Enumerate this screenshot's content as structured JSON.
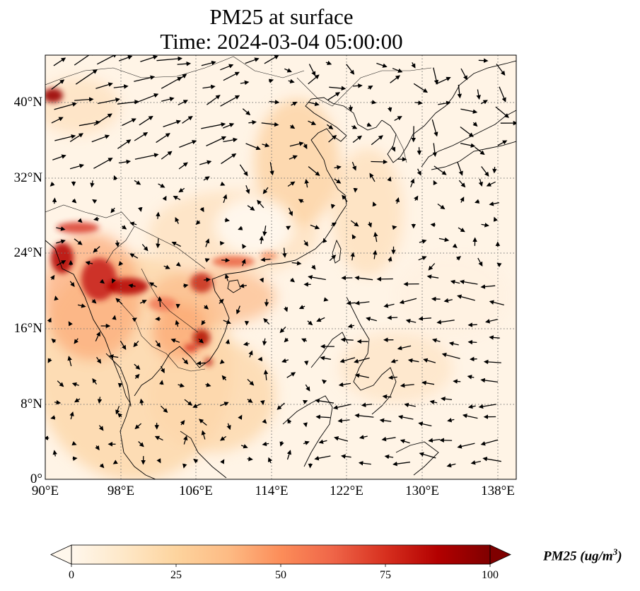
{
  "figure": {
    "title_line1": "PM25 at surface",
    "title_line2": "Time: 2024-03-04 05:00:00"
  },
  "map": {
    "lon_range": [
      90,
      140
    ],
    "lat_range": [
      0,
      45
    ],
    "lon_ticks": [
      "90°E",
      "98°E",
      "106°E",
      "114°E",
      "122°E",
      "130°E",
      "138°E"
    ],
    "lat_ticks": [
      "0°",
      "8°N",
      "16°N",
      "24°N",
      "32°N",
      "40°N"
    ],
    "gridlines": "dotted",
    "colormap": "OrRd",
    "colormap_colors": [
      "#fff7ec",
      "#fee8c8",
      "#fdd49e",
      "#fdbb84",
      "#fc8d59",
      "#ef6548",
      "#d7301f",
      "#b30000",
      "#7f0000"
    ]
  },
  "colorbar": {
    "label": "PM25 (ug/m",
    "label_sup": "3",
    "label_close": ")",
    "ticks": [
      "0",
      "25",
      "50",
      "75",
      "100"
    ],
    "min": 0,
    "max": 100,
    "extend": "both"
  }
}
